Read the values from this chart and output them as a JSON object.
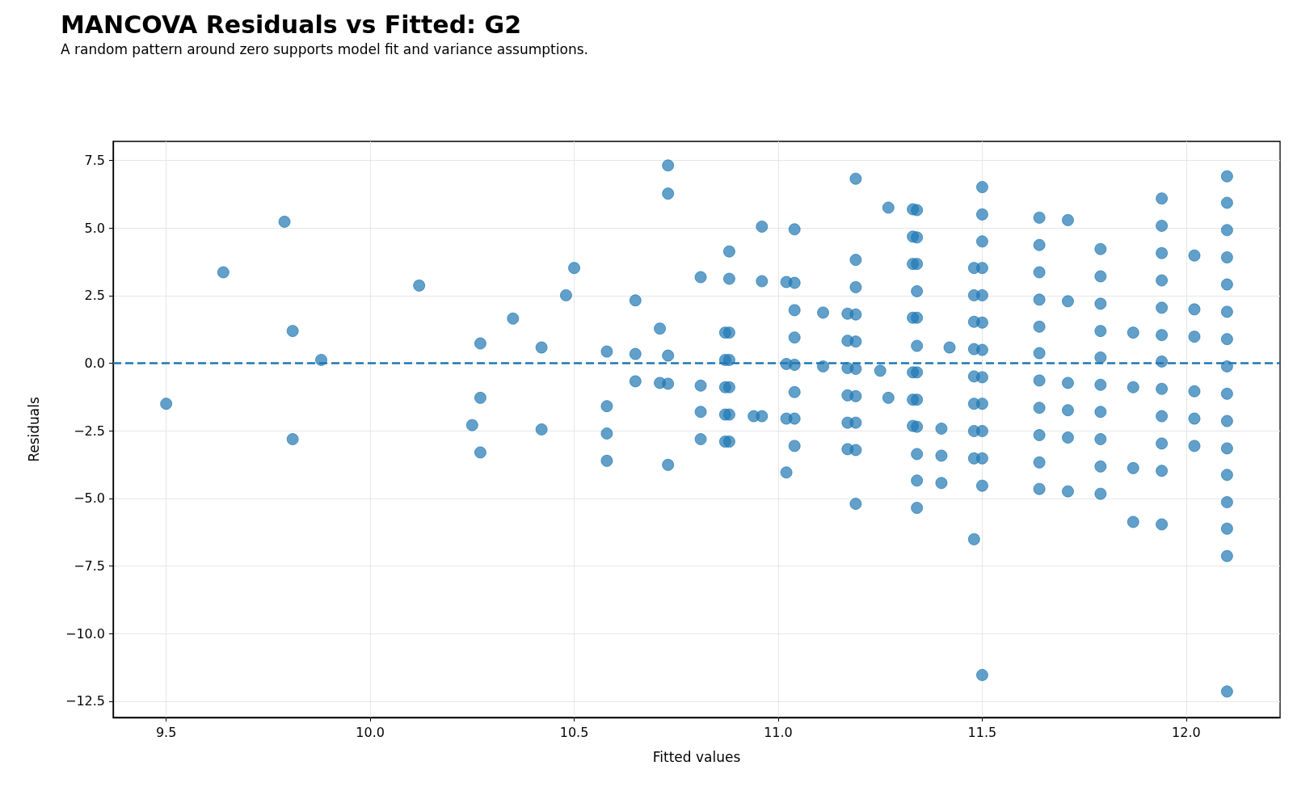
{
  "chart_data": {
    "type": "scatter",
    "title": "MANCOVA Residuals vs Fitted: G2",
    "subtitle": "A random pattern around zero supports model fit and variance assumptions.",
    "xlabel": "Fitted values",
    "ylabel": "Residuals",
    "series": [
      {
        "color": "#1f77b4",
        "x": [
          9.5,
          9.64,
          9.79,
          9.81,
          9.81,
          9.88,
          10.12,
          10.25,
          10.27,
          10.27,
          10.27,
          10.35,
          10.42,
          10.42,
          10.48,
          10.5,
          10.58,
          10.58,
          10.58,
          10.58,
          10.65,
          10.65,
          10.65,
          10.71,
          10.71,
          10.73,
          10.73,
          10.73,
          10.73,
          10.73,
          10.81,
          10.81,
          10.81,
          10.81,
          10.87,
          10.87,
          10.87,
          10.87,
          10.87,
          10.88,
          10.88,
          10.88,
          10.88,
          10.88,
          10.88,
          10.88,
          10.94,
          10.96,
          10.96,
          10.96,
          11.02,
          11.02,
          11.02,
          11.02,
          11.04,
          11.04,
          11.04,
          11.04,
          11.04,
          11.04,
          11.04,
          11.04,
          11.11,
          11.11,
          11.17,
          11.17,
          11.17,
          11.17,
          11.17,
          11.17,
          11.19,
          11.19,
          11.19,
          11.19,
          11.19,
          11.19,
          11.19,
          11.19,
          11.19,
          11.19,
          11.25,
          11.27,
          11.27,
          11.33,
          11.33,
          11.33,
          11.33,
          11.33,
          11.33,
          11.33,
          11.34,
          11.34,
          11.34,
          11.34,
          11.34,
          11.34,
          11.34,
          11.34,
          11.34,
          11.34,
          11.34,
          11.34,
          11.4,
          11.4,
          11.4,
          11.42,
          11.48,
          11.48,
          11.48,
          11.48,
          11.48,
          11.48,
          11.48,
          11.48,
          11.48,
          11.5,
          11.5,
          11.5,
          11.5,
          11.5,
          11.5,
          11.5,
          11.5,
          11.5,
          11.5,
          11.5,
          11.5,
          11.5,
          11.64,
          11.64,
          11.64,
          11.64,
          11.64,
          11.64,
          11.64,
          11.64,
          11.64,
          11.64,
          11.64,
          11.71,
          11.71,
          11.71,
          11.71,
          11.71,
          11.71,
          11.79,
          11.79,
          11.79,
          11.79,
          11.79,
          11.79,
          11.79,
          11.79,
          11.79,
          11.79,
          11.87,
          11.87,
          11.87,
          11.87,
          11.94,
          11.94,
          11.94,
          11.94,
          11.94,
          11.94,
          11.94,
          11.94,
          11.94,
          11.94,
          11.94,
          11.94,
          12.02,
          12.02,
          12.02,
          12.02,
          12.02,
          12.02,
          12.1,
          12.1,
          12.1,
          12.1,
          12.1,
          12.1,
          12.1,
          12.1,
          12.1,
          12.1,
          12.1,
          12.1,
          12.1,
          12.1,
          12.1,
          12.1
        ],
        "values": [
          -1.5,
          3.36,
          5.23,
          1.19,
          -2.81,
          0.12,
          2.87,
          -2.29,
          0.73,
          -1.28,
          -3.3,
          1.65,
          0.58,
          -2.45,
          2.51,
          3.52,
          0.43,
          -1.59,
          -2.6,
          -3.61,
          2.32,
          0.34,
          -0.67,
          1.28,
          -0.73,
          7.31,
          6.27,
          0.28,
          -0.76,
          -3.76,
          3.18,
          -0.83,
          -1.8,
          -2.81,
          1.13,
          0.12,
          -0.89,
          -1.9,
          -2.9,
          4.13,
          3.12,
          1.13,
          0.12,
          -0.89,
          -1.9,
          -2.9,
          -1.96,
          5.05,
          3.03,
          -1.96,
          3.0,
          -0.03,
          -2.05,
          -4.04,
          4.95,
          2.97,
          1.96,
          0.95,
          -0.06,
          -1.07,
          -2.05,
          -3.06,
          1.87,
          -0.12,
          1.83,
          0.83,
          -0.18,
          -1.19,
          -2.2,
          -3.18,
          6.82,
          3.82,
          2.81,
          1.8,
          0.8,
          -0.21,
          -1.22,
          -2.2,
          -3.21,
          -5.2,
          -0.28,
          5.75,
          -1.28,
          5.69,
          4.68,
          3.67,
          1.68,
          -0.34,
          -1.35,
          -2.32,
          5.66,
          4.65,
          3.67,
          2.66,
          1.68,
          0.64,
          -0.34,
          -1.35,
          -2.35,
          -3.36,
          -4.34,
          -5.35,
          -2.42,
          -3.42,
          -4.43,
          0.58,
          3.52,
          2.51,
          1.53,
          0.52,
          -0.49,
          -1.5,
          -2.51,
          -3.52,
          -6.51,
          6.51,
          5.5,
          4.5,
          3.52,
          2.51,
          1.5,
          0.49,
          -0.52,
          -1.5,
          -2.51,
          -3.52,
          -4.53,
          -11.53,
          5.38,
          4.37,
          3.36,
          2.35,
          1.35,
          0.37,
          -0.64,
          -1.65,
          -2.66,
          -3.67,
          -4.65,
          5.29,
          2.29,
          -0.73,
          -1.74,
          -2.75,
          -4.74,
          4.22,
          3.21,
          2.2,
          1.19,
          0.21,
          -0.8,
          -1.8,
          -2.81,
          -3.82,
          -4.83,
          1.13,
          -0.89,
          -3.88,
          -5.87,
          6.09,
          5.08,
          4.07,
          3.06,
          2.05,
          1.04,
          0.06,
          -0.95,
          -1.96,
          -2.97,
          -3.98,
          -5.96,
          3.98,
          1.99,
          0.98,
          -1.04,
          -2.05,
          -3.06,
          6.91,
          5.93,
          4.92,
          3.91,
          2.91,
          1.9,
          0.89,
          -0.12,
          -1.13,
          -2.14,
          -3.15,
          -4.13,
          -5.14,
          -6.12,
          -7.13,
          -12.14
        ]
      }
    ],
    "xlim": [
      9.37,
      12.23
    ],
    "xticks": [
      9.5,
      {
        "value": 10,
        "label": "10.0"
      },
      10.5,
      {
        "value": 11,
        "label": "11.0"
      },
      11.5,
      {
        "value": 12,
        "label": "12.0"
      }
    ],
    "ylim": [
      -13.1,
      8.2
    ],
    "yticks": [
      {
        "value": -12.5,
        "label": "−12.5"
      },
      {
        "value": -10,
        "label": "−10.0"
      },
      {
        "value": -7.5,
        "label": "−7.5"
      },
      {
        "value": -5,
        "label": "−5.0"
      },
      {
        "value": -2.5,
        "label": "−2.5"
      },
      {
        "value": 0,
        "label": "0.0"
      },
      2.5,
      {
        "value": 5,
        "label": "5.0"
      },
      7.5
    ],
    "ref_lines": [
      {
        "axis": "y",
        "value": 0,
        "color": "#1f77b4",
        "line_style": "dashed"
      }
    ],
    "grid": true,
    "marker": "circle"
  }
}
